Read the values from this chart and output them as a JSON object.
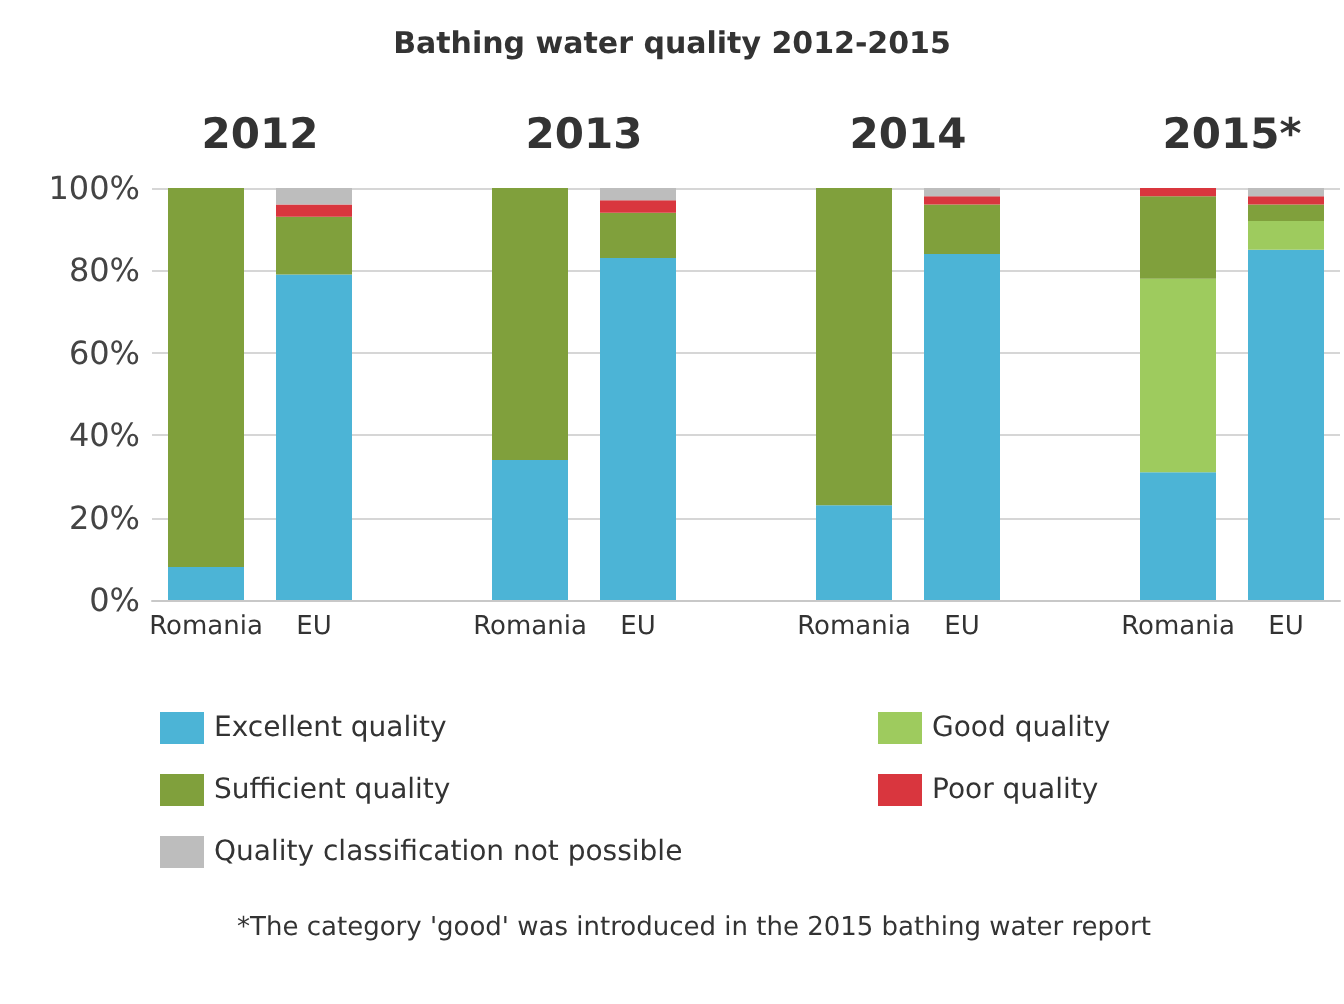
{
  "chart_data": {
    "type": "bar",
    "title": "Bathing water quality 2012-2015",
    "categories": [
      "Romania",
      "EU",
      "Romania",
      "EU",
      "Romania",
      "EU",
      "Romania",
      "EU"
    ],
    "series": [
      {
        "name": "Excellent quality",
        "color": "#4cb4d6",
        "values": [
          8,
          79,
          34,
          83,
          23,
          84,
          31,
          85
        ]
      },
      {
        "name": "Good quality",
        "color": "#9ecb5e",
        "values": [
          null,
          null,
          null,
          null,
          null,
          null,
          47,
          7
        ]
      },
      {
        "name": "Sufficient quality",
        "color": "#80a03c",
        "values": [
          92,
          14,
          66,
          11,
          77,
          12,
          20,
          4
        ]
      },
      {
        "name": "Poor quality",
        "color": "#d9363e",
        "values": [
          null,
          3,
          null,
          3,
          null,
          2,
          2,
          2
        ]
      },
      {
        "name": "Quality classification not possible",
        "color": "#bdbdbd",
        "values": [
          null,
          4,
          null,
          3,
          null,
          2,
          null,
          2
        ]
      }
    ],
    "stacked": true,
    "ylim": [
      0,
      100
    ],
    "yticks": [
      {
        "value": 0,
        "label": "0%"
      },
      {
        "value": 20,
        "label": "20%"
      },
      {
        "value": 40,
        "label": "40%"
      },
      {
        "value": 60,
        "label": "60%"
      },
      {
        "value": 80,
        "label": "80%"
      },
      {
        "value": 100,
        "label": "100%"
      }
    ],
    "grid": "y",
    "legend": "bottom",
    "annotations": [
      "2012",
      "2013",
      "2014",
      "2015*",
      "*The category 'good' was introduced in the 2015 bathing water report"
    ]
  }
}
